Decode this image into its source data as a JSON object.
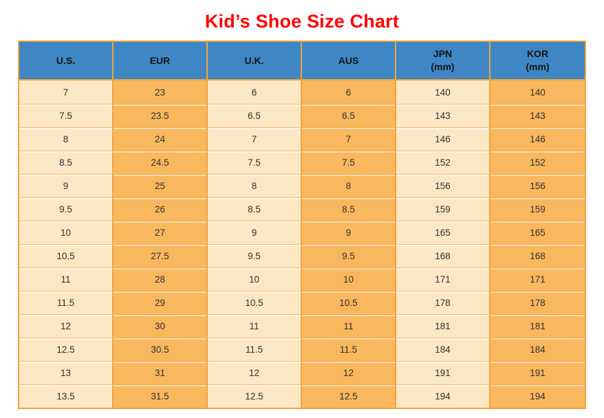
{
  "title": "Kid’s Shoe Size Chart",
  "colors": {
    "title-red": "#ff0000",
    "header-blue": "#3f86c4",
    "border-orange": "#f0a43c",
    "cell-light": "#fce7c5",
    "cell-dark": "#f9b75e",
    "cell-text": "#303030"
  },
  "chart_data": {
    "type": "table",
    "title": "Kid’s Shoe Size Chart",
    "columns": [
      {
        "id": "us",
        "label": "U.S.",
        "unit": ""
      },
      {
        "id": "eur",
        "label": "EUR",
        "unit": ""
      },
      {
        "id": "uk",
        "label": "U.K.",
        "unit": ""
      },
      {
        "id": "aus",
        "label": "AUS",
        "unit": ""
      },
      {
        "id": "jpn",
        "label": "JPN",
        "unit": "(mm)"
      },
      {
        "id": "kor",
        "label": "KOR",
        "unit": "(mm)"
      }
    ],
    "rows": [
      [
        "7",
        "23",
        "6",
        "6",
        "140",
        "140"
      ],
      [
        "7.5",
        "23.5",
        "6.5",
        "6.5",
        "143",
        "143"
      ],
      [
        "8",
        "24",
        "7",
        "7",
        "146",
        "146"
      ],
      [
        "8.5",
        "24.5",
        "7.5",
        "7.5",
        "152",
        "152"
      ],
      [
        "9",
        "25",
        "8",
        "8",
        "156",
        "156"
      ],
      [
        "9.5",
        "26",
        "8.5",
        "8.5",
        "159",
        "159"
      ],
      [
        "10",
        "27",
        "9",
        "9",
        "165",
        "165"
      ],
      [
        "10.5",
        "27.5",
        "9.5",
        "9.5",
        "168",
        "168"
      ],
      [
        "11",
        "28",
        "10",
        "10",
        "171",
        "171"
      ],
      [
        "11.5",
        "29",
        "10.5",
        "10.5",
        "178",
        "178"
      ],
      [
        "12",
        "30",
        "11",
        "11",
        "181",
        "181"
      ],
      [
        "12.5",
        "30.5",
        "11.5",
        "11.5",
        "184",
        "184"
      ],
      [
        "13",
        "31",
        "12",
        "12",
        "191",
        "191"
      ],
      [
        "13.5",
        "31.5",
        "12.5",
        "12.5",
        "194",
        "194"
      ]
    ]
  }
}
